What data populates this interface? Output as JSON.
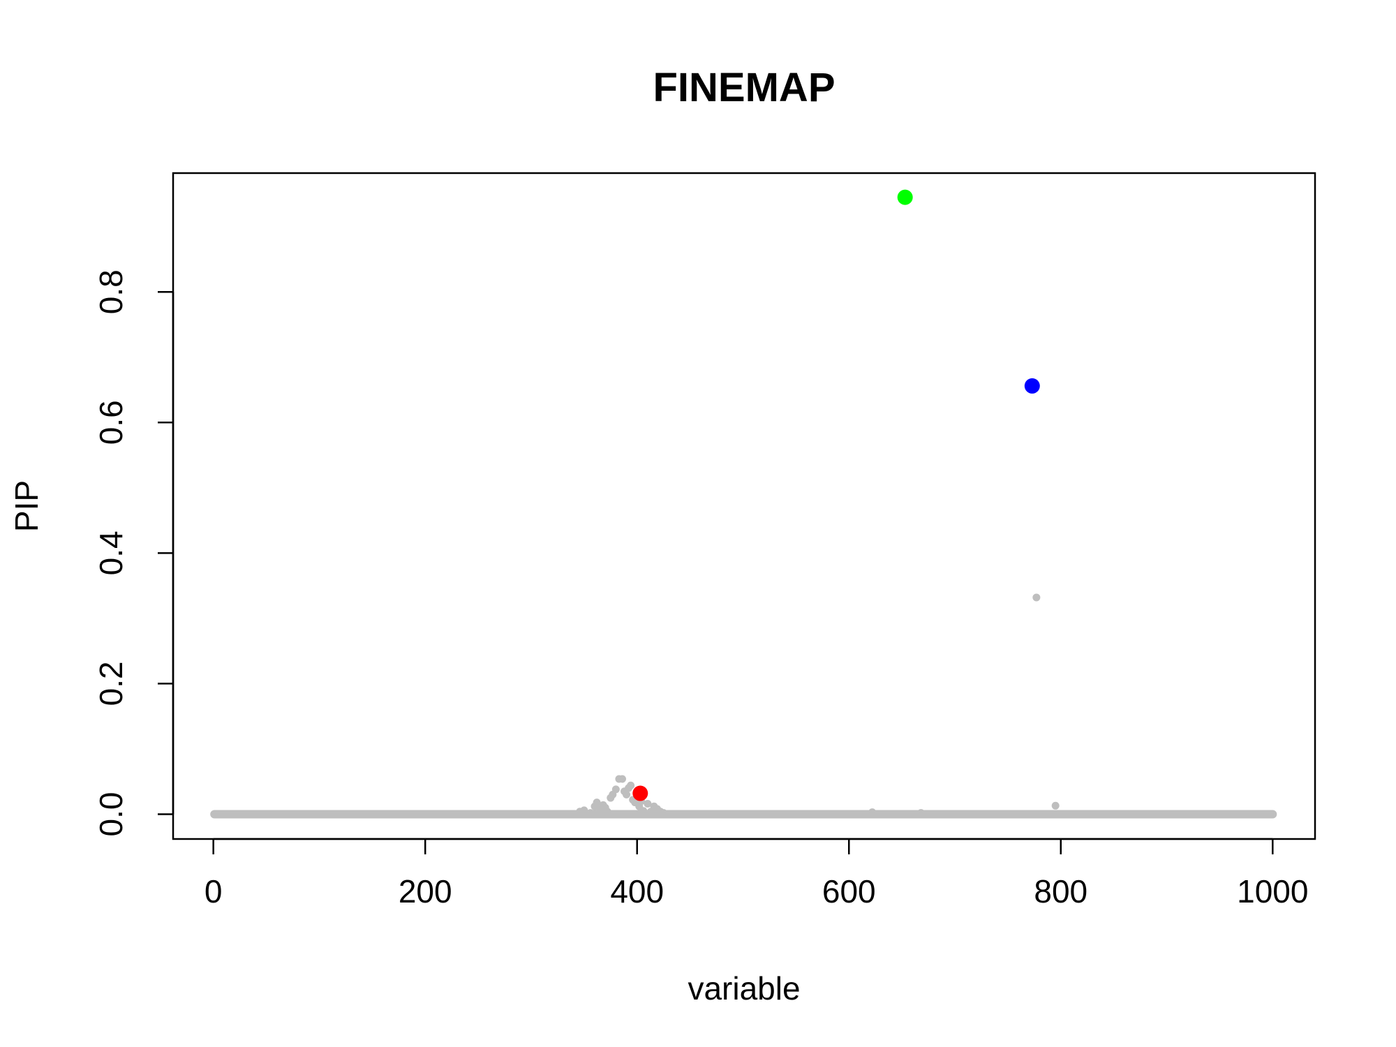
{
  "chart_data": {
    "type": "scatter",
    "title": "FINEMAP",
    "xlabel": "variable",
    "ylabel": "PIP",
    "xlim": [
      -38,
      1040
    ],
    "ylim": [
      -0.038,
      0.982
    ],
    "x_ticks": [
      0,
      200,
      400,
      600,
      800,
      1000
    ],
    "y_ticks": [
      0.0,
      0.2,
      0.4,
      0.6,
      0.8
    ],
    "x_tick_labels": [
      "0",
      "200",
      "400",
      "600",
      "800",
      "1000"
    ],
    "y_tick_labels": [
      "0.0",
      "0.2",
      "0.4",
      "0.6",
      "0.8"
    ],
    "grid": false,
    "legend": "none",
    "colors": {
      "background_points": "#bebebe",
      "highlight_red": "#ff0000",
      "highlight_green": "#00ff00",
      "highlight_blue": "#0000ff"
    },
    "baseline": {
      "x_from": 1,
      "x_to": 1000,
      "y": 0.0
    },
    "background_points": [
      [
        346,
        0.004
      ],
      [
        350,
        0.006
      ],
      [
        356,
        0.002
      ],
      [
        360,
        0.012
      ],
      [
        362,
        0.018
      ],
      [
        365,
        0.008
      ],
      [
        368,
        0.014
      ],
      [
        370,
        0.01
      ],
      [
        372,
        0.004
      ],
      [
        375,
        0.025
      ],
      [
        377,
        0.03
      ],
      [
        380,
        0.038
      ],
      [
        383,
        0.054
      ],
      [
        386,
        0.054
      ],
      [
        388,
        0.035
      ],
      [
        390,
        0.03
      ],
      [
        392,
        0.04
      ],
      [
        394,
        0.044
      ],
      [
        396,
        0.022
      ],
      [
        398,
        0.018
      ],
      [
        400,
        0.03
      ],
      [
        402,
        0.012
      ],
      [
        404,
        0.02
      ],
      [
        406,
        0.005
      ],
      [
        410,
        0.016
      ],
      [
        413,
        0.004
      ],
      [
        416,
        0.012
      ],
      [
        419,
        0.008
      ],
      [
        422,
        0.004
      ],
      [
        425,
        0.002
      ],
      [
        622,
        0.003
      ],
      [
        668,
        0.002
      ],
      [
        777,
        0.332
      ],
      [
        795,
        0.013
      ]
    ],
    "highlight_points": [
      {
        "x": 403,
        "y": 0.032,
        "color": "#ff0000"
      },
      {
        "x": 653,
        "y": 0.945,
        "color": "#00ff00"
      },
      {
        "x": 773,
        "y": 0.656,
        "color": "#0000ff"
      }
    ]
  }
}
